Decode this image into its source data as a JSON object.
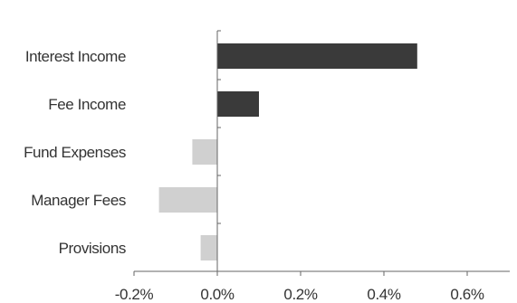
{
  "chart_data": {
    "type": "bar",
    "orientation": "horizontal",
    "categories": [
      "Interest Income",
      "Fee Income",
      "Fund Expenses",
      "Manager Fees",
      "Provisions"
    ],
    "values": [
      0.48,
      0.1,
      -0.06,
      -0.14,
      -0.04
    ],
    "bar_colors": [
      "#3a3a3a",
      "#3a3a3a",
      "#d0d0d0",
      "#d0d0d0",
      "#d0d0d0"
    ],
    "xlim": [
      -0.2,
      0.7
    ],
    "x_ticks": [
      -0.2,
      0.0,
      0.2,
      0.4,
      0.6
    ],
    "x_tick_labels": [
      "-0.2%",
      "0.0%",
      "0.2%",
      "0.4%",
      "0.6%"
    ],
    "title": "",
    "xlabel": "",
    "ylabel": "",
    "grid": false,
    "legend": "none"
  }
}
